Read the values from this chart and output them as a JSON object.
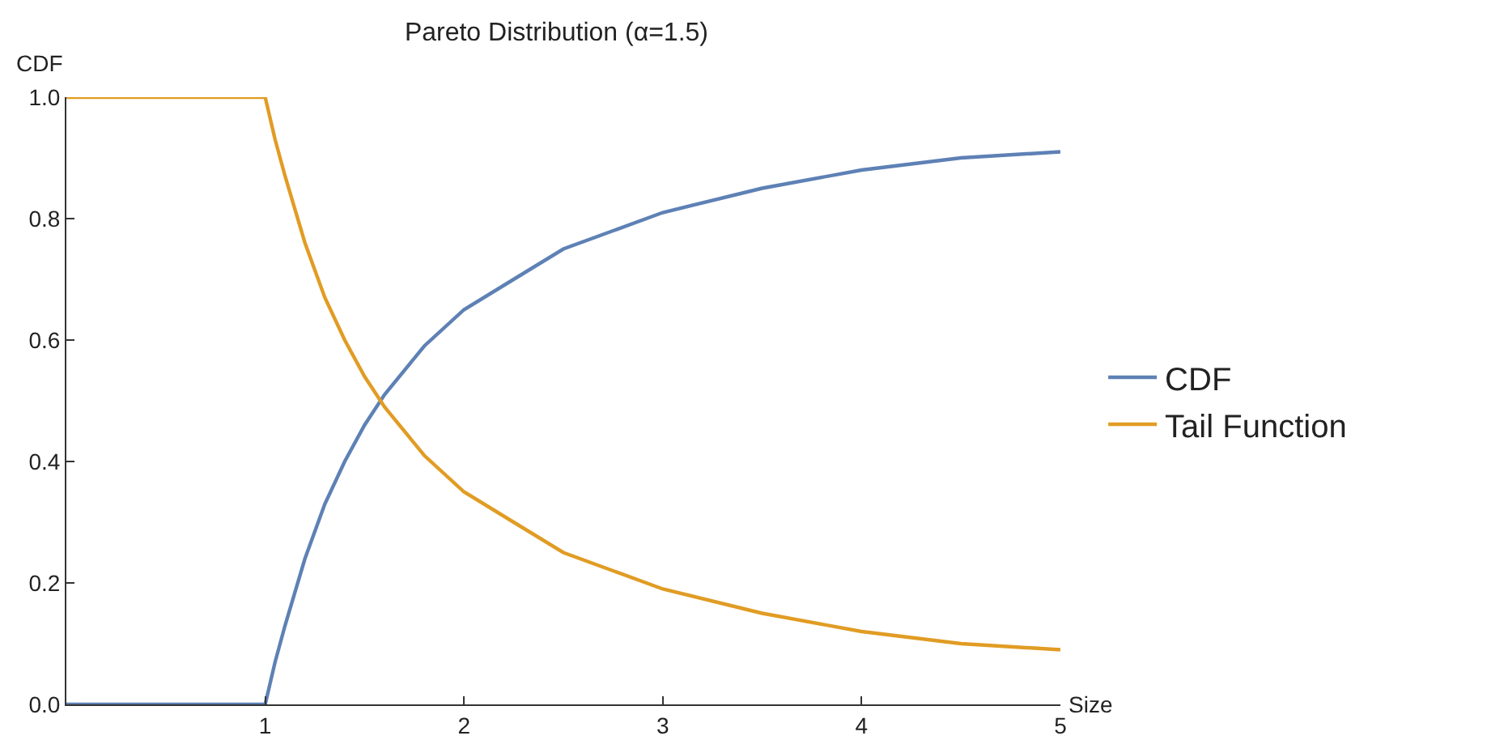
{
  "chart_data": {
    "type": "line",
    "title": "Pareto Distribution (α=1.5)",
    "xlabel": "Size",
    "ylabel": "CDF",
    "x": [
      0,
      1,
      1.05,
      1.1,
      1.2,
      1.3,
      1.4,
      1.5,
      1.6,
      1.8,
      2,
      2.25,
      2.5,
      2.75,
      3,
      3.5,
      4,
      4.5,
      5
    ],
    "series": [
      {
        "name": "CDF",
        "color": "#5e81b5",
        "values": [
          0,
          0,
          0.07,
          0.13,
          0.24,
          0.33,
          0.4,
          0.46,
          0.51,
          0.59,
          0.65,
          0.7,
          0.75,
          0.78,
          0.81,
          0.85,
          0.88,
          0.9,
          0.91
        ]
      },
      {
        "name": "Tail Function",
        "color": "#e19c24",
        "values": [
          1,
          1,
          0.93,
          0.87,
          0.76,
          0.67,
          0.6,
          0.54,
          0.49,
          0.41,
          0.35,
          0.3,
          0.25,
          0.22,
          0.19,
          0.15,
          0.12,
          0.1,
          0.09
        ]
      }
    ],
    "xlim": [
      0,
      5
    ],
    "xticks": [
      1,
      2,
      3,
      4,
      5
    ],
    "ylim": [
      0,
      1
    ],
    "yticks": [
      {
        "value": 0,
        "label": "0.0"
      },
      {
        "value": 0.2,
        "label": "0.2"
      },
      {
        "value": 0.4,
        "label": "0.4"
      },
      {
        "value": 0.6,
        "label": "0.6"
      },
      {
        "value": 0.8,
        "label": "0.8"
      },
      {
        "value": 1,
        "label": "1.0"
      }
    ],
    "grid": false,
    "legend": "right",
    "marker": "none",
    "line_style": "solid"
  }
}
